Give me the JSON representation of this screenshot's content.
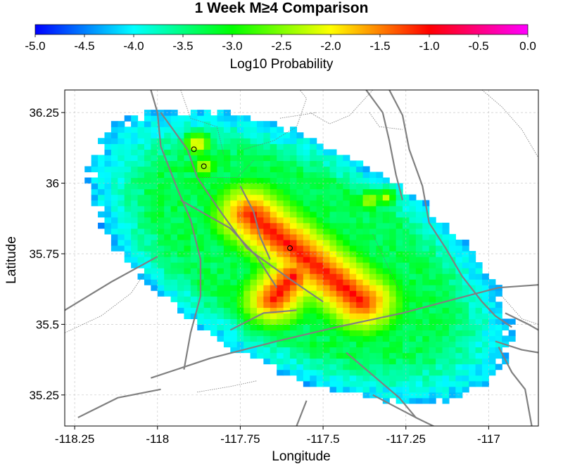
{
  "chart_data": {
    "type": "heatmap",
    "title": "1 Week M≥4 Comparison",
    "colorbar": {
      "label": "Log10 Probability",
      "range": [
        -5.0,
        0.0
      ],
      "ticks": [
        "-5.0",
        "-4.5",
        "-4.0",
        "-3.5",
        "-3.0",
        "-2.5",
        "-2.0",
        "-1.5",
        "-1.0",
        "-0.5",
        "0.0"
      ],
      "colormap": [
        "#0000ff",
        "#00ffff",
        "#00ff00",
        "#ffff00",
        "#ff0000",
        "#ff00ff"
      ]
    },
    "xlabel": "Longitude",
    "ylabel": "Latitude",
    "xlim": [
      -118.28,
      -116.85
    ],
    "ylim": [
      35.14,
      36.33
    ],
    "xticks": [
      "-118.25",
      "-118",
      "-117.75",
      "-117.5",
      "-117.25",
      "-117"
    ],
    "yticks": [
      "36.25",
      "36",
      "35.75",
      "35.5",
      "35.25"
    ],
    "grid": true,
    "grid_cell_deg": 0.02,
    "field": {
      "background_value": -3.3,
      "region_center": [
        -117.57,
        35.74
      ],
      "region_semi_axes": [
        0.72,
        0.38
      ],
      "region_rotation_deg": -35,
      "peak_rupture": {
        "from": [
          -117.72,
          35.89
        ],
        "to": [
          -117.38,
          35.58
        ],
        "value": -1.0
      },
      "secondary_branch": {
        "from": [
          -117.59,
          35.67
        ],
        "to": [
          -117.65,
          35.59
        ],
        "value": -1.2
      },
      "hotspots": [
        {
          "lon": -117.88,
          "lat": 36.14,
          "value": -1.7
        },
        {
          "lon": -117.86,
          "lat": 36.06,
          "value": -1.9
        },
        {
          "lon": -117.36,
          "lat": 35.94,
          "value": -2.0
        },
        {
          "lon": -117.31,
          "lat": 35.95,
          "value": -2.2
        }
      ],
      "edge_value": -4.3
    },
    "markers": [
      {
        "lon": -117.89,
        "lat": 36.12
      },
      {
        "lon": -117.86,
        "lat": 36.06
      },
      {
        "lon": -117.6,
        "lat": 35.77
      }
    ],
    "faults": [
      [
        [
          -118.02,
          36.33
        ],
        [
          -118.0,
          36.25
        ],
        [
          -117.99,
          36.13
        ],
        [
          -117.94,
          35.98
        ],
        [
          -117.9,
          35.87
        ],
        [
          -117.87,
          35.73
        ],
        [
          -117.87,
          35.6
        ],
        [
          -117.9,
          35.47
        ],
        [
          -117.92,
          35.34
        ]
      ],
      [
        [
          -117.99,
          36.25
        ],
        [
          -117.91,
          36.12
        ],
        [
          -117.88,
          36.02
        ],
        [
          -117.81,
          35.9
        ],
        [
          -117.73,
          35.77
        ],
        [
          -117.6,
          35.66
        ],
        [
          -117.5,
          35.58
        ]
      ],
      [
        [
          -117.93,
          35.94
        ],
        [
          -117.78,
          35.84
        ],
        [
          -117.7,
          35.74
        ],
        [
          -117.64,
          35.63
        ]
      ],
      [
        [
          -117.75,
          35.99
        ],
        [
          -117.71,
          35.9
        ],
        [
          -117.69,
          35.81
        ],
        [
          -117.66,
          35.73
        ]
      ],
      [
        [
          -117.37,
          36.33
        ],
        [
          -117.32,
          36.25
        ],
        [
          -117.3,
          36.15
        ],
        [
          -117.28,
          36.03
        ],
        [
          -117.26,
          35.94
        ]
      ],
      [
        [
          -117.3,
          36.33
        ],
        [
          -117.26,
          36.24
        ],
        [
          -117.24,
          36.12
        ],
        [
          -117.2,
          35.99
        ],
        [
          -117.18,
          35.86
        ],
        [
          -117.13,
          35.77
        ],
        [
          -117.08,
          35.67
        ],
        [
          -117.02,
          35.58
        ],
        [
          -116.98,
          35.53
        ],
        [
          -116.93,
          35.49
        ]
      ],
      [
        [
          -118.28,
          35.55
        ],
        [
          -118.14,
          35.65
        ],
        [
          -118.0,
          35.74
        ]
      ],
      [
        [
          -118.02,
          35.31
        ],
        [
          -117.84,
          35.38
        ],
        [
          -117.64,
          35.44
        ],
        [
          -117.46,
          35.49
        ],
        [
          -117.26,
          35.54
        ],
        [
          -117.1,
          35.59
        ],
        [
          -116.97,
          35.63
        ],
        [
          -116.85,
          35.64
        ]
      ],
      [
        [
          -117.35,
          35.25
        ],
        [
          -117.22,
          35.17
        ],
        [
          -117.15,
          35.13
        ]
      ],
      [
        [
          -117.43,
          35.4
        ],
        [
          -117.35,
          35.32
        ],
        [
          -117.27,
          35.24
        ],
        [
          -117.22,
          35.17
        ]
      ],
      [
        [
          -116.97,
          35.42
        ],
        [
          -116.93,
          35.33
        ],
        [
          -116.89,
          35.27
        ],
        [
          -116.87,
          35.14
        ]
      ],
      [
        [
          -118.24,
          35.17
        ],
        [
          -118.12,
          35.24
        ],
        [
          -117.99,
          35.27
        ]
      ],
      [
        [
          -117.58,
          35.14
        ],
        [
          -117.55,
          35.23
        ]
      ],
      [
        [
          -117.78,
          35.48
        ],
        [
          -117.68,
          35.54
        ],
        [
          -117.58,
          35.55
        ]
      ],
      [
        [
          -116.98,
          35.44
        ],
        [
          -116.9,
          35.41
        ],
        [
          -116.85,
          35.4
        ]
      ],
      [
        [
          -116.95,
          35.54
        ],
        [
          -116.88,
          35.5
        ],
        [
          -116.85,
          35.48
        ]
      ]
    ],
    "boundaries": [
      [
        [
          -117.93,
          36.33
        ],
        [
          -117.9,
          36.23
        ],
        [
          -117.82,
          36.2
        ],
        [
          -117.8,
          36.1
        ]
      ],
      [
        [
          -117.74,
          36.12
        ],
        [
          -117.65,
          36.15
        ],
        [
          -117.58,
          36.2
        ],
        [
          -117.55,
          36.3
        ],
        [
          -117.57,
          36.33
        ]
      ],
      [
        [
          -117.35,
          36.33
        ],
        [
          -117.42,
          36.24
        ],
        [
          -117.48,
          36.21
        ],
        [
          -117.54,
          36.25
        ]
      ],
      [
        [
          -117.36,
          36.25
        ],
        [
          -117.33,
          36.2
        ],
        [
          -117.26,
          36.19
        ]
      ],
      [
        [
          -117.63,
          36.23
        ],
        [
          -117.52,
          36.25
        ]
      ],
      [
        [
          -118.28,
          35.47
        ],
        [
          -118.17,
          35.53
        ],
        [
          -118.08,
          35.61
        ],
        [
          -118.04,
          35.68
        ]
      ],
      [
        [
          -117.88,
          35.26
        ],
        [
          -117.78,
          35.28
        ],
        [
          -117.7,
          35.3
        ]
      ],
      [
        [
          -117.02,
          36.33
        ],
        [
          -116.96,
          36.27
        ],
        [
          -116.9,
          36.19
        ],
        [
          -116.85,
          36.09
        ]
      ],
      [
        [
          -117.87,
          36.02
        ],
        [
          -117.76,
          36.02
        ],
        [
          -117.71,
          36.08
        ]
      ],
      [
        [
          -117.35,
          35.82
        ],
        [
          -117.31,
          35.72
        ],
        [
          -117.27,
          35.62
        ]
      ],
      [
        [
          -116.96,
          35.6
        ],
        [
          -116.9,
          35.52
        ],
        [
          -116.85,
          35.5
        ]
      ]
    ]
  }
}
